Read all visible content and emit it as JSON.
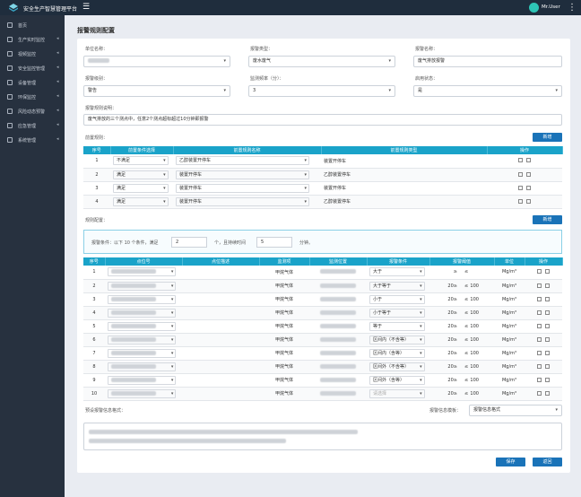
{
  "app": {
    "title": "安全生产智慧管理平台",
    "menu_icon": "hamburger-icon",
    "user_name": "Mr.User"
  },
  "sidebar": {
    "items": [
      {
        "label": "首页",
        "icon": "home-icon",
        "arrow": ""
      },
      {
        "label": "生产实时监控",
        "icon": "monitor-icon",
        "arrow": "◂"
      },
      {
        "label": "视频监控",
        "icon": "video-icon",
        "arrow": "◂"
      },
      {
        "label": "安全监控管理",
        "icon": "shield-icon",
        "arrow": "◂"
      },
      {
        "label": "设备管理",
        "icon": "gear-icon",
        "arrow": "◂"
      },
      {
        "label": "环保监控",
        "icon": "leaf-icon",
        "arrow": "◂"
      },
      {
        "label": "风险动态预警",
        "icon": "warning-icon",
        "arrow": "◂"
      },
      {
        "label": "应急管理",
        "icon": "alarm-icon",
        "arrow": "◂"
      },
      {
        "label": "系统管理",
        "icon": "settings-icon",
        "arrow": "◂"
      }
    ]
  },
  "page": {
    "title": "报警规则配置"
  },
  "form": {
    "unit_label": "单位名称：",
    "type_label": "报警类型：",
    "type_value": "废水废气",
    "name_label": "报警名称：",
    "name_value": "废气排放报警",
    "level_label": "报警级别：",
    "level_value": "警告",
    "freq_label": "监测频率（分）：",
    "freq_value": "3",
    "enabled_label": "启用状态：",
    "enabled_value": "是",
    "desc_label": "报警规则说明：",
    "desc_value": "废气排放的三个测点中，任意2个测点超标超过10分钟即报警"
  },
  "pre_rules": {
    "label": "前置规则：",
    "add_label": "新增",
    "headers": [
      "序号",
      "前置条件选择",
      "前置规则名称",
      "前置规则类型",
      "操作"
    ],
    "rows": [
      {
        "no": "1",
        "cond": "不满足",
        "name": "乙醇装置开停车",
        "type": "装置开停车"
      },
      {
        "no": "2",
        "cond": "满足",
        "name": "装置开停车",
        "type": "乙醇装置停车"
      },
      {
        "no": "3",
        "cond": "满足",
        "name": "装置开停车",
        "type": "装置开停车"
      },
      {
        "no": "4",
        "cond": "满足",
        "name": "装置开停车",
        "type": "乙醇装置停车"
      }
    ]
  },
  "rule_config": {
    "label": "规则配置：",
    "add_label": "新增",
    "cond_prefix": "报警条件：以下 10 个条件，满足",
    "cond_count": "2",
    "cond_mid": "个，且持续时间",
    "cond_duration": "5",
    "cond_suffix": "分钟。"
  },
  "points": {
    "headers": [
      "序号",
      "点位号",
      "点位描述",
      "监测项",
      "监测位置",
      "报警条件",
      "报警阈值",
      "单位",
      "操作"
    ],
    "ge": "≥",
    "le": "≤",
    "placeholder": "请选择",
    "rows": [
      {
        "no": "1",
        "item": "甲烷气体",
        "cond": "大于",
        "low": "",
        "high": "",
        "unit": "Mg/m³"
      },
      {
        "no": "2",
        "item": "甲烷气体",
        "cond": "大于等于",
        "low": "20",
        "high": "100",
        "unit": "Mg/m³"
      },
      {
        "no": "3",
        "item": "甲烷气体",
        "cond": "小于",
        "low": "20",
        "high": "100",
        "unit": "Mg/m³"
      },
      {
        "no": "4",
        "item": "甲烷气体",
        "cond": "小于等于",
        "low": "20",
        "high": "100",
        "unit": "Mg/m³"
      },
      {
        "no": "5",
        "item": "甲烷气体",
        "cond": "等于",
        "low": "20",
        "high": "100",
        "unit": "Mg/m³"
      },
      {
        "no": "6",
        "item": "甲烷气体",
        "cond": "区间内（不含等）",
        "low": "20",
        "high": "100",
        "unit": "Mg/m³"
      },
      {
        "no": "7",
        "item": "甲烷气体",
        "cond": "区间内（含等）",
        "low": "20",
        "high": "100",
        "unit": "Mg/m³"
      },
      {
        "no": "8",
        "item": "甲烷气体",
        "cond": "区间外（不含等）",
        "low": "20",
        "high": "100",
        "unit": "Mg/m³"
      },
      {
        "no": "9",
        "item": "甲烷气体",
        "cond": "区间外（含等）",
        "low": "20",
        "high": "100",
        "unit": "Mg/m³"
      },
      {
        "no": "10",
        "item": "甲烷气体",
        "cond": "",
        "low": "20",
        "high": "100",
        "unit": "Mg/m³"
      }
    ]
  },
  "message": {
    "format_label": "预设报警信息格式：",
    "template_label": "报警信息模板：",
    "template_value": "报警信息格式"
  },
  "footer": {
    "save_label": "保存",
    "back_label": "返回"
  }
}
